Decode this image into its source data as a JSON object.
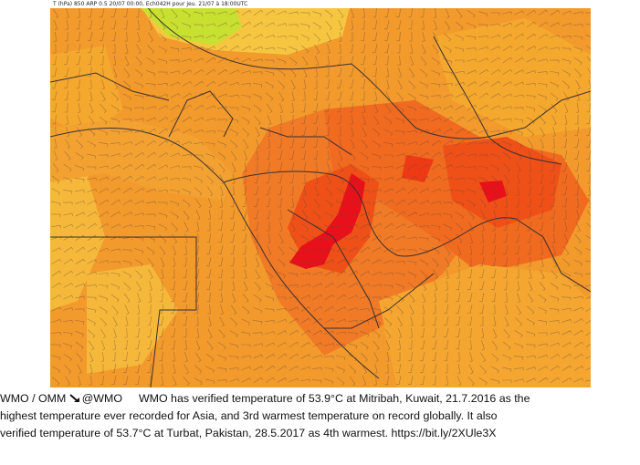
{
  "map": {
    "header": "T (hPa) 850 ARP 0.5 20/07 00:00, Ech042H pour jeu. 21/07 à 18:00UTC",
    "colors": {
      "hot": "#f06a20",
      "hotter": "#ee3a14",
      "extreme": "#e8101a",
      "warm": "#f5a82e",
      "mild": "#f6c640",
      "cool": "#c8e030",
      "border": "#3a3030",
      "wind": "#6a4a3a"
    }
  },
  "tweet": {
    "author": "WMO / OMM",
    "handle": "@WMO",
    "handle_icon": "arrow-down-right-icon",
    "line1": "WMO has verified temperature of 53.9°C at Mitribah, Kuwait, 21.7.2016 as the",
    "line2": "highest temperature ever recorded for Asia, and 3rd warmest temperature on record globally. It also",
    "line3": "verified temperature of 53.7°C at Turbat, Pakistan, 28.5.2017 as 4th warmest. https://bit.ly/2XUle3X"
  }
}
